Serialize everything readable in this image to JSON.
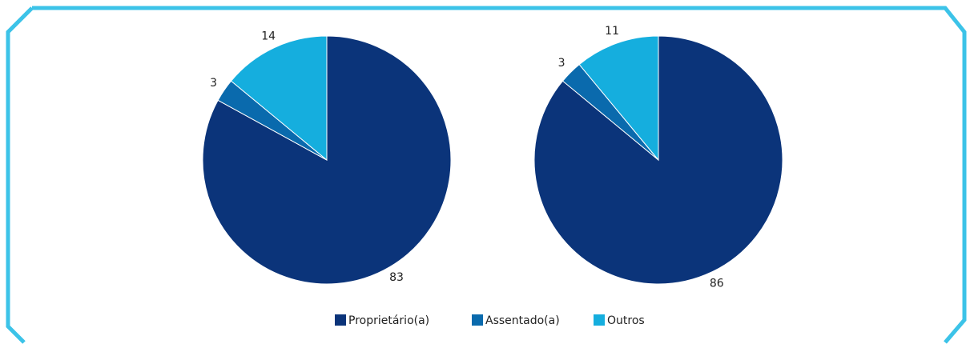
{
  "chart_data": [
    {
      "type": "pie",
      "categories": [
        "Proprietário(a)",
        "Assentado(a)",
        "Outros"
      ],
      "values": [
        83,
        3,
        14
      ],
      "colors": [
        "#0b347a",
        "#0a6aad",
        "#15aede"
      ]
    },
    {
      "type": "pie",
      "categories": [
        "Proprietário(a)",
        "Assentado(a)",
        "Outros"
      ],
      "values": [
        86,
        3,
        11
      ],
      "colors": [
        "#0b347a",
        "#0a6aad",
        "#15aede"
      ]
    }
  ]
}
